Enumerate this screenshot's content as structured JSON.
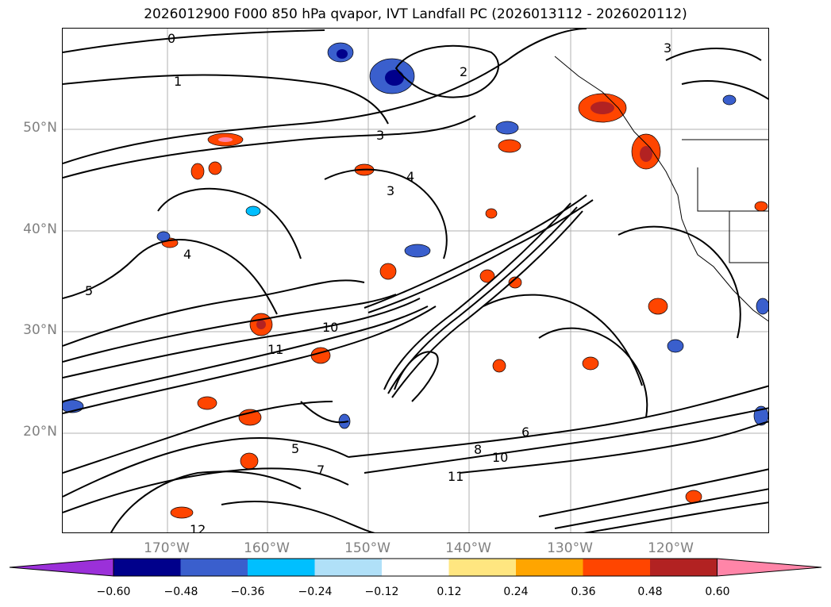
{
  "title": "2026012900 F000 850 hPa qvapor, IVT Landfall PC (2026013112 - 2026020112)",
  "map": {
    "lat_labels": [
      "50°N",
      "40°N",
      "30°N",
      "20°N"
    ],
    "lon_labels": [
      "170°W",
      "160°W",
      "150°W",
      "140°W",
      "130°W",
      "120°W"
    ],
    "contour_labels": [
      "0",
      "1",
      "2",
      "3",
      "3",
      "3",
      "4",
      "4",
      "5",
      "6",
      "8",
      "10",
      "10",
      "11",
      "11",
      "12",
      "7",
      "5"
    ]
  },
  "colorbar": {
    "ticks": [
      "−0.60",
      "−0.48",
      "−0.36",
      "−0.24",
      "−0.12",
      "0.12",
      "0.24",
      "0.36",
      "0.48",
      "0.60"
    ],
    "colors": [
      "#9b30d9",
      "#00008b",
      "#3a5fcd",
      "#00bfff",
      "#b0e0f8",
      "#ffffff",
      "#ffe680",
      "#ffa500",
      "#ff4500",
      "#b22222",
      "#ff85a8"
    ]
  }
}
